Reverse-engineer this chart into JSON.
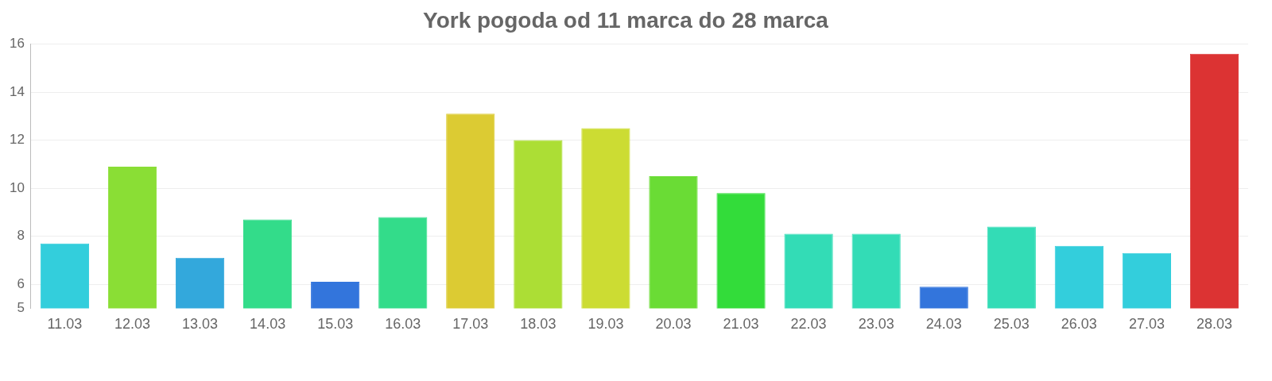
{
  "chart_data": {
    "type": "bar",
    "title": "York pogoda od 11 marca do 28 marca",
    "categories": [
      "11.03",
      "12.03",
      "13.03",
      "14.03",
      "15.03",
      "16.03",
      "17.03",
      "18.03",
      "19.03",
      "20.03",
      "21.03",
      "22.03",
      "23.03",
      "24.03",
      "25.03",
      "26.03",
      "27.03",
      "28.03"
    ],
    "values": [
      7.7,
      10.9,
      7.1,
      8.7,
      6.1,
      8.8,
      13.1,
      12.0,
      12.5,
      10.5,
      9.8,
      8.1,
      8.1,
      5.9,
      8.4,
      7.6,
      7.3,
      15.6
    ],
    "colors": [
      "#33cedc",
      "#8ade35",
      "#33a8dc",
      "#33dc8a",
      "#3375dc",
      "#33dc8a",
      "#dccb33",
      "#acde35",
      "#ccdc33",
      "#6adc35",
      "#33dc3a",
      "#33dcb6",
      "#33dcb6",
      "#3375dc",
      "#33dcb6",
      "#33cedc",
      "#33cedc",
      "#dc3333"
    ],
    "ylim": [
      5,
      16
    ],
    "yticks": [
      5,
      6,
      8,
      10,
      12,
      14,
      16
    ],
    "grid": "y"
  }
}
